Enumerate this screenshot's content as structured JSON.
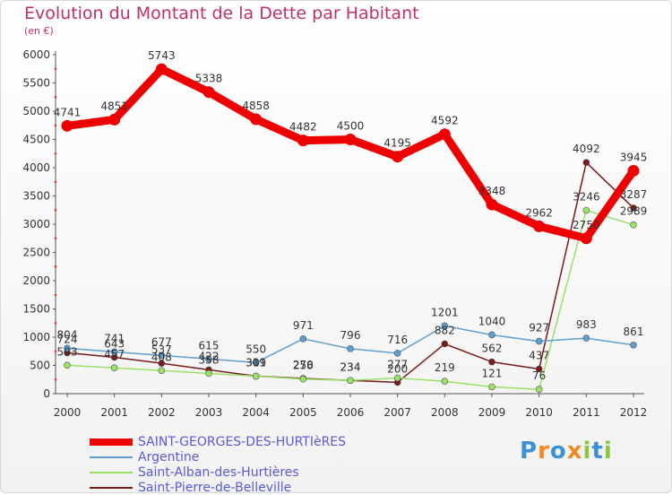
{
  "chart_data": {
    "type": "line",
    "title": "Evolution du Montant de la Dette par Habitant",
    "subtitle": "(en €)",
    "x": [
      "2000",
      "2001",
      "2002",
      "2003",
      "2004",
      "2005",
      "2006",
      "2007",
      "2008",
      "2009",
      "2010",
      "2011",
      "2012"
    ],
    "ylim": [
      0,
      6000
    ],
    "yticks": [
      0,
      500,
      1000,
      1500,
      2000,
      2500,
      3000,
      3500,
      4000,
      4500,
      5000,
      5500,
      6000
    ],
    "grid": false,
    "legend_position": "bottom-left",
    "series": [
      {
        "name": "SAINT-GEORGES-DES-HURTIèRES",
        "color": "#ee0000",
        "values": [
          4741,
          4851,
          5743,
          5338,
          4858,
          4482,
          4500,
          4195,
          4592,
          3348,
          2962,
          2750,
          3945
        ]
      },
      {
        "name": "Argentine",
        "color": "#5f9fd0",
        "values": [
          804,
          741,
          677,
          615,
          550,
          971,
          796,
          716,
          1201,
          1040,
          927,
          983,
          861
        ]
      },
      {
        "name": "Saint-Alban-des-Hurtières",
        "color": "#99e266",
        "values": [
          503,
          457,
          408,
          358,
          309,
          258,
          234,
          277,
          219,
          121,
          76,
          3246,
          2989
        ]
      },
      {
        "name": "Saint-Pierre-de-Belleville",
        "color": "#7a1a1a",
        "values": [
          724,
          643,
          537,
          422,
          311,
          270,
          234,
          200,
          882,
          562,
          437,
          4092,
          3287
        ]
      }
    ]
  },
  "logo": {
    "letters": [
      "P",
      "r",
      "o",
      "x",
      "i",
      "t",
      "i"
    ],
    "colors": [
      "#3d8fd6",
      "#f08a24",
      "#3d8fd6",
      "#f08a24",
      "#8cc63f",
      "#3d8fd6",
      "#8cc63f"
    ]
  }
}
